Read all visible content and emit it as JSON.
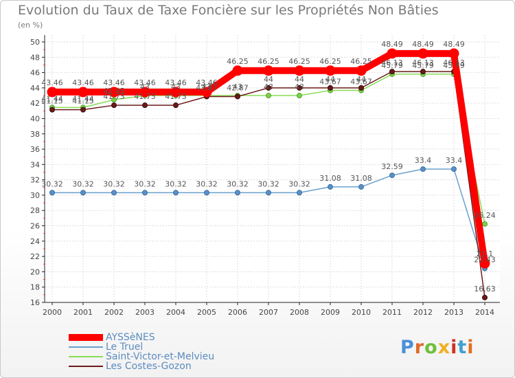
{
  "chart_data": {
    "type": "line",
    "title": "Evolution du Taux de Taxe Foncière sur les Propriétés Non Bâties",
    "subtitle": "(en %)",
    "xlabel": "",
    "ylabel": "",
    "ylim": [
      16,
      50
    ],
    "yticks": [
      16,
      18,
      20,
      22,
      24,
      26,
      28,
      30,
      32,
      34,
      36,
      38,
      40,
      42,
      44,
      46,
      48,
      50
    ],
    "categories": [
      "2000",
      "2001",
      "2002",
      "2003",
      "2004",
      "2005",
      "2006",
      "2007",
      "2008",
      "2009",
      "2010",
      "2011",
      "2012",
      "2013",
      "2014"
    ],
    "grid": true,
    "legend_position": "bottom-left",
    "series": [
      {
        "name": "AYSSèNES",
        "color": "#ff0000",
        "values": [
          43.46,
          43.46,
          43.46,
          43.46,
          43.46,
          43.46,
          46.25,
          46.25,
          46.25,
          46.25,
          46.25,
          48.49,
          48.49,
          48.49,
          21.1
        ],
        "labels": [
          "43.46",
          "43.46",
          "43.46",
          "43.46",
          "43.46",
          "43.46",
          "46.25",
          "46.25",
          "46.25",
          "46.25",
          "46.25",
          "48.49",
          "48.49",
          "48.49",
          "21.1"
        ]
      },
      {
        "name": "Le Truel",
        "color": "#6aa0cc",
        "values": [
          30.32,
          30.32,
          30.32,
          30.32,
          30.32,
          30.32,
          30.32,
          30.32,
          30.32,
          31.08,
          31.08,
          32.59,
          33.4,
          33.4,
          20.43
        ],
        "labels": [
          "30.32",
          "30.32",
          "30.32",
          "30.32",
          "30.32",
          "30.32",
          "30.32",
          "30.32",
          "30.32",
          "31.08",
          "31.08",
          "32.59",
          "33.4",
          "33.4",
          "20.43"
        ]
      },
      {
        "name": "Saint-Victor-et-Melvieu",
        "color": "#88dd55",
        "values": [
          41.44,
          41.44,
          42.45,
          43.0,
          43.0,
          43.0,
          43.0,
          43.0,
          43.0,
          43.67,
          43.67,
          45.79,
          45.79,
          45.79,
          26.24
        ],
        "labels": [
          "41.44",
          "41.44",
          "42.45",
          "43",
          "43",
          "43",
          "43",
          "43",
          "43",
          "43.67",
          "43.67",
          "45.79",
          "45.79",
          "45.79",
          "26.24"
        ]
      },
      {
        "name": "Les Costes-Gozon",
        "color": "#6b1a1a",
        "values": [
          41.15,
          41.15,
          41.73,
          41.73,
          41.73,
          42.87,
          42.87,
          44.0,
          44.0,
          44.0,
          44.0,
          46.13,
          46.13,
          46.13,
          16.63
        ],
        "labels": [
          "41.15",
          "41.15",
          "41.73",
          "41.73",
          "41.73",
          "42.87",
          "42.87",
          "44",
          "44",
          "44",
          "44",
          "46.13",
          "46.13",
          "46.13",
          "16.63"
        ]
      }
    ]
  },
  "logo": {
    "text": "Proxiti",
    "colors": [
      "#4a90d9",
      "#e06a2a",
      "#6fbf3a",
      "#f0b020",
      "#d03020",
      "#3fa0d0",
      "#e07020"
    ]
  }
}
